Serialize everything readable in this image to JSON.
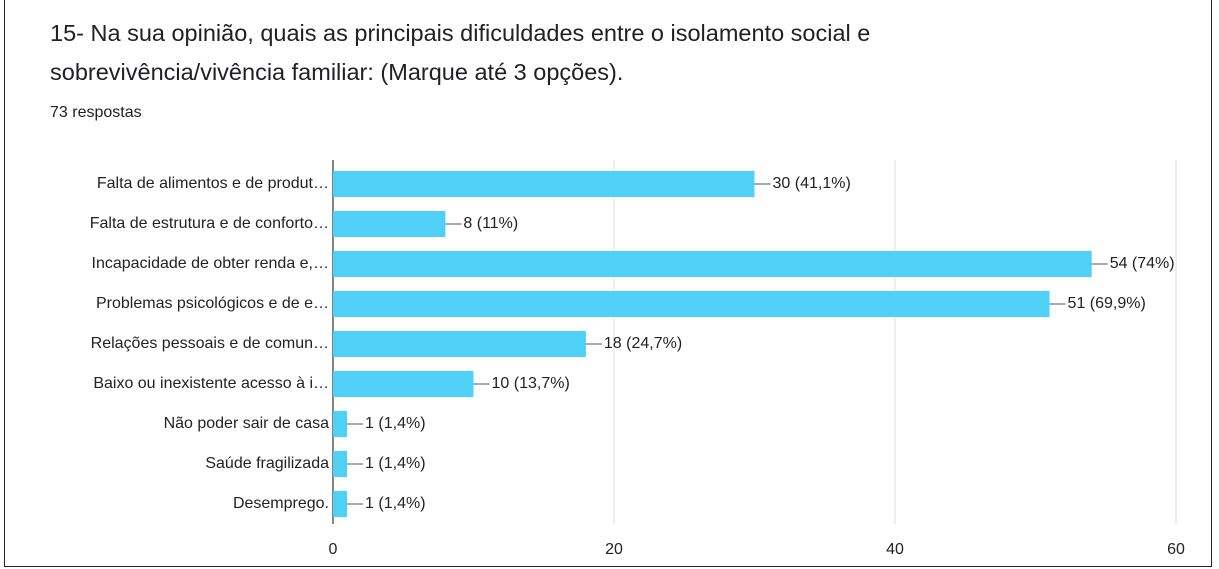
{
  "chart_data": {
    "type": "hbar",
    "title": "15- Na sua opinião, quais as principais dificuldades entre o isolamento social e sobrevivência/vivência familiar: (Marque até 3 opções).",
    "subtitle": "73 respostas",
    "categories": [
      "Falta de alimentos e de produt…",
      "Falta de estrutura e de conforto…",
      "Incapacidade de obter renda e,…",
      "Problemas psicológicos e de e…",
      "Relações pessoais e de comun…",
      "Baixo ou inexistente acesso à i…",
      "Não poder sair de casa",
      "Saúde fragilizada",
      "Desemprego."
    ],
    "values": [
      30,
      8,
      54,
      51,
      18,
      10,
      1,
      1,
      1
    ],
    "value_labels": [
      "30 (41,1%)",
      "8 (11%)",
      "54 (74%)",
      "51 (69,9%)",
      "18 (24,7%)",
      "10 (13,7%)",
      "1 (1,4%)",
      "1 (1,4%)",
      "1 (1,4%)"
    ],
    "color": "#4fd0f7",
    "xlim": [
      0,
      60
    ],
    "xticks": [
      0,
      20,
      40,
      60
    ],
    "grid": true
  }
}
